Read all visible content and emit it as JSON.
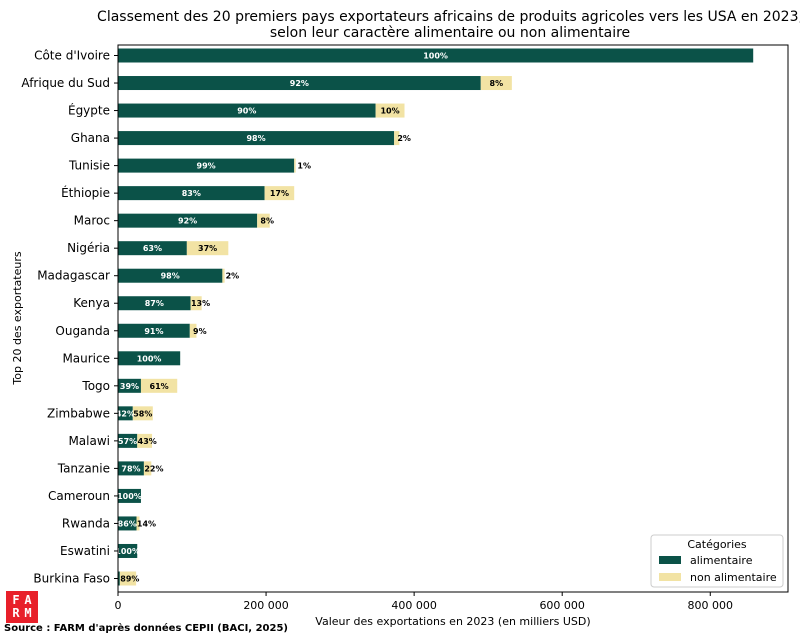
{
  "chart_data": {
    "type": "bar",
    "orientation": "horizontal",
    "stacked": true,
    "title": "Classement des 20 premiers pays exportateurs africains de produits agricoles vers les USA en 2023,\nselon leur caractère alimentaire ou non alimentaire",
    "xlabel": "Valeur des exportations en 2023 (en milliers USD)",
    "ylabel": "Top 20 des exportateurs",
    "xlim": [
      0,
      905000
    ],
    "xticks": [
      0,
      200000,
      400000,
      600000,
      800000
    ],
    "xtick_labels": [
      "0",
      "200 000",
      "400 000",
      "600 000",
      "800 000"
    ],
    "categories": [
      "Côte d'Ivoire",
      "Afrique du Sud",
      "Égypte",
      "Ghana",
      "Tunisie",
      "Éthiopie",
      "Maroc",
      "Nigéria",
      "Madagascar",
      "Kenya",
      "Ouganda",
      "Maurice",
      "Togo",
      "Zimbabwe",
      "Malawi",
      "Tanzanie",
      "Cameroun",
      "Rwanda",
      "Eswatini",
      "Burkina Faso"
    ],
    "series": [
      {
        "name": "alimentaire",
        "color": "#0b5248",
        "values": [
          858000,
          490000,
          348000,
          373000,
          238000,
          198000,
          188000,
          93000,
          141000,
          98000,
          97000,
          84000,
          31000,
          20000,
          26000,
          35000,
          31000,
          25000,
          26000,
          2500
        ],
        "labels": [
          "100%",
          "92%",
          "90%",
          "98%",
          "99%",
          "83%",
          "92%",
          "63%",
          "98%",
          "87%",
          "91%",
          "100%",
          "39%",
          "42%",
          "57%",
          "78%",
          "100%",
          "86%",
          "100%",
          ""
        ]
      },
      {
        "name": "non alimentaire",
        "color": "#f2e3a4",
        "values": [
          0,
          42000,
          39000,
          7000,
          2000,
          40000,
          17000,
          56000,
          3000,
          15000,
          9000,
          0,
          49000,
          27000,
          20000,
          10000,
          0,
          4000,
          0,
          22000
        ],
        "labels": [
          "",
          "8%",
          "10%",
          "2%",
          "1%",
          "17%",
          "8%",
          "37%",
          "2%",
          "13%",
          "9%",
          "",
          "61%",
          "58%",
          "43%",
          "22%",
          "",
          "14%",
          "",
          "89%"
        ]
      }
    ],
    "legend": {
      "title": "Catégories",
      "position": "bottom-right"
    },
    "grid": false
  },
  "logo_text": "FARM",
  "source": "Source : FARM d'après données CEPII (BACI, 2025)"
}
